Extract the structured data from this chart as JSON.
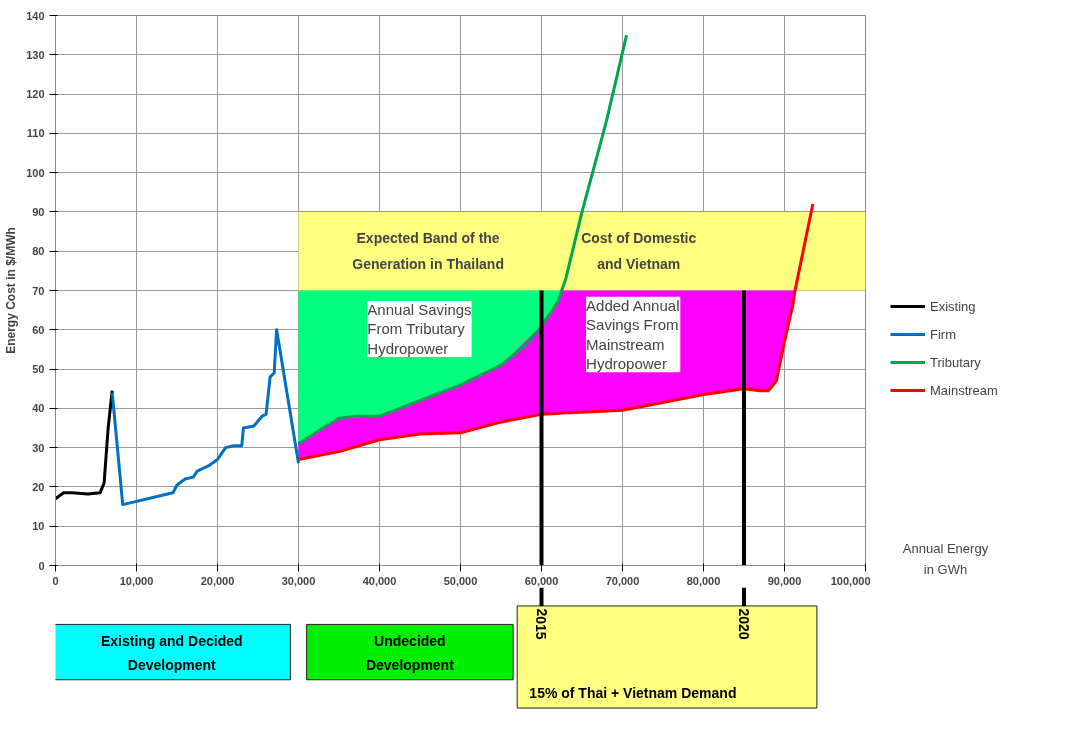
{
  "chart_data": {
    "type": "line",
    "ylabel": "Energy Cost in $/MWh",
    "xlabel": "Annual Energy\nin GWh",
    "xlim": [
      0,
      100000
    ],
    "ylim": [
      0,
      140
    ],
    "xticks": [
      0,
      {
        "value": 10000,
        "label": "10,000"
      },
      {
        "value": 20000,
        "label": "20,000"
      },
      {
        "value": 30000,
        "label": "30,000"
      },
      {
        "value": 40000,
        "label": "40,000"
      },
      {
        "value": 50000,
        "label": "50,000"
      },
      {
        "value": 60000,
        "label": "60,000"
      },
      {
        "value": 70000,
        "label": "70,000"
      },
      {
        "value": 80000,
        "label": "80,000"
      },
      {
        "value": 90000,
        "label": "90,000"
      },
      {
        "value": 100000,
        "label": "100,000"
      }
    ],
    "yticks": [
      0,
      10,
      20,
      30,
      40,
      50,
      60,
      70,
      80,
      90,
      100,
      110,
      120,
      130,
      140
    ],
    "grid": true,
    "legend": "right",
    "marker": "none",
    "line_style": "solid",
    "series": [
      {
        "name": "Existing",
        "color": "#000000",
        "x": [
          0,
          1000,
          2000,
          4000,
          5500,
          6000,
          6500,
          7000
        ],
        "values": [
          17,
          18.5,
          18.5,
          18.2,
          18.5,
          21,
          35,
          44.5
        ]
      },
      {
        "name": "Firm",
        "color": "#0070c0",
        "x": [
          7000,
          8300,
          14500,
          15000,
          16000,
          17000,
          17500,
          19000,
          20000,
          21000,
          22000,
          23000,
          23200,
          24500,
          25500,
          26000,
          26500,
          27000,
          27300,
          30000
        ],
        "values": [
          44,
          15.5,
          18.5,
          20.5,
          22,
          22.5,
          24,
          25.5,
          27,
          30,
          30.5,
          30.5,
          35,
          35.5,
          38,
          38.5,
          48,
          49,
          60,
          26
        ]
      },
      {
        "name": "Tributary",
        "color": "#00a550",
        "x": [
          30000,
          33000,
          35000,
          37000,
          40000,
          45000,
          50000,
          55000,
          58000,
          60000,
          62000,
          62500,
          63000,
          65000,
          68000,
          70500
        ],
        "values": [
          31,
          35,
          37.5,
          38,
          38,
          42,
          46,
          51,
          56,
          61,
          67,
          70,
          73,
          90,
          113,
          135
        ],
        "lower": [
          31,
          35,
          37.5,
          38,
          38,
          42,
          46,
          51,
          56,
          61,
          67,
          70,
          null,
          null,
          null,
          null
        ],
        "upper": [
          70,
          70,
          70,
          70,
          70,
          70,
          70,
          70,
          70,
          70,
          70,
          70,
          null,
          null,
          null,
          null
        ]
      },
      {
        "name": "Mainstream",
        "color": "#ff0000",
        "x": [
          30000,
          35000,
          40000,
          45000,
          50000,
          55000,
          60000,
          62000,
          62500,
          65000,
          70000,
          75000,
          80000,
          85000,
          87000,
          88000,
          89000,
          90000,
          91000,
          91300,
          93500
        ],
        "values": [
          27,
          29,
          32,
          33.5,
          33.8,
          36.5,
          38.5,
          38.7,
          38.8,
          39,
          39.5,
          41.5,
          43.5,
          45,
          44.5,
          44.5,
          47,
          57,
          66,
          70,
          92
        ],
        "lower": [
          27,
          29,
          32,
          33.5,
          33.8,
          36.5,
          38.5,
          38.7,
          38.8,
          39,
          39.5,
          41.5,
          43.5,
          45,
          44.5,
          44.5,
          47,
          57,
          66,
          70,
          null
        ],
        "upper": [
          31,
          37.5,
          38,
          42,
          46,
          51,
          61,
          67,
          70,
          70,
          70,
          70,
          70,
          70,
          70,
          70,
          70,
          70,
          70,
          70,
          null
        ]
      }
    ],
    "bands": [
      {
        "axis": "y",
        "from": 70,
        "to": 90,
        "color": "#ffff80"
      }
    ],
    "ref_lines": [
      {
        "axis": "x",
        "value": 60000,
        "color": "#000000"
      },
      {
        "axis": "x",
        "value": 85000,
        "color": "#000000"
      }
    ],
    "annotations": [
      "Expected Band of the\nGeneration in Thailand",
      "Cost of Domestic\nand Vietnam",
      "Annual Savings\nFrom Tributary\nHydropower",
      "Added Annual\nSavings From\nMainstream\nHydropower",
      "Existing and Decided\nDevelopment",
      "Undecided\nDevelopment",
      "15% of Thai + Vietnam Demand",
      {
        "text": "2015",
        "x": 60000
      },
      {
        "text": "2020",
        "x": 85000
      }
    ]
  }
}
